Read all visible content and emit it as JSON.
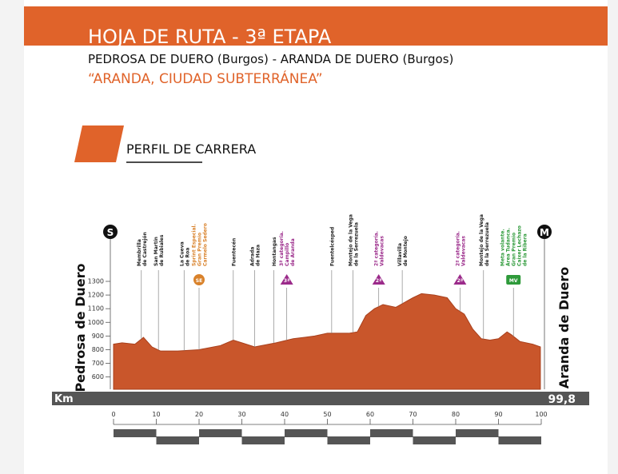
{
  "header": {
    "title": "HOJA DE RUTA - 3ª ETAPA",
    "subtitle": "PEDROSA DE DUERO (Burgos) - ARANDA DE DUERO (Burgos)",
    "tagline": "“ARANDA, CIUDAD SUBTERRÁNEA”"
  },
  "section": {
    "title": "PERFIL DE CARRERA"
  },
  "chart_data": {
    "type": "area",
    "color": "#c9562b",
    "x": [
      0,
      2,
      5,
      7,
      9,
      11,
      15,
      20,
      25,
      28,
      30,
      33,
      38,
      42,
      47,
      50,
      55,
      57,
      59,
      61,
      63,
      66,
      70,
      72,
      75,
      78,
      80,
      82,
      84,
      86,
      88,
      90,
      92,
      93,
      95,
      98,
      99.8
    ],
    "values": [
      840,
      850,
      840,
      890,
      820,
      790,
      790,
      800,
      830,
      870,
      850,
      820,
      850,
      880,
      900,
      920,
      920,
      930,
      1050,
      1100,
      1130,
      1110,
      1180,
      1210,
      1200,
      1180,
      1100,
      1060,
      950,
      880,
      870,
      880,
      930,
      910,
      860,
      840,
      820
    ],
    "xlim": [
      0,
      100
    ],
    "xticks": [
      0,
      10,
      20,
      30,
      40,
      50,
      60,
      70,
      80,
      90,
      100
    ],
    "ylim": [
      510,
      1300
    ],
    "yticks": [
      600,
      700,
      800,
      900,
      1000,
      1100,
      1200,
      1300
    ],
    "start": {
      "symbol": "S",
      "name": "Pedrosa de Duero"
    },
    "finish": {
      "symbol": "M",
      "name": "Aranda de Duero"
    },
    "km_bar": {
      "label": "Km",
      "total": "99,8"
    },
    "waypoints": [
      {
        "km": 6.5,
        "lines": [
          "Membrilla",
          "de Castrejón"
        ],
        "color": "#222222"
      },
      {
        "km": 10.5,
        "lines": [
          "San Martín",
          "de Rubiales"
        ],
        "color": "#222222"
      },
      {
        "km": 16.5,
        "lines": [
          "La Cueva",
          "de Roa"
        ],
        "color": "#222222"
      },
      {
        "km": 20,
        "lines": [
          "Sprint Especial.",
          "Gran Premio",
          "Carmelo Sedero"
        ],
        "color": "#d9822b",
        "badge": "SE",
        "shape": "circle"
      },
      {
        "km": 28,
        "lines": [
          "Fuentecén"
        ],
        "color": "#222222"
      },
      {
        "km": 33,
        "lines": [
          "Adrada",
          "de Haza"
        ],
        "color": "#222222"
      },
      {
        "km": 37.5,
        "lines": [
          "Hontangas"
        ],
        "color": "#222222"
      },
      {
        "km": 40.5,
        "lines": [
          "3ª categoría.",
          "Campillo",
          "de Aranda"
        ],
        "color": "#9b2a8a",
        "badge": "3ª",
        "shape": "triangle"
      },
      {
        "km": 51,
        "lines": [
          "Fuentelcésped"
        ],
        "color": "#222222"
      },
      {
        "km": 56,
        "lines": [
          "Montejo de la Vega",
          "de la Serrezuela"
        ],
        "color": "#222222"
      },
      {
        "km": 62,
        "lines": [
          "2ª categoría.",
          "Valdevacas"
        ],
        "color": "#9b2a8a",
        "badge": "2ª",
        "shape": "triangle"
      },
      {
        "km": 67.5,
        "lines": [
          "Villavilla",
          "de Montejo"
        ],
        "color": "#222222"
      },
      {
        "km": 81,
        "lines": [
          "2ª categoría.",
          "Valdevacas"
        ],
        "color": "#9b2a8a",
        "badge": "2ª",
        "shape": "triangle"
      },
      {
        "km": 86.5,
        "lines": [
          "Montejo de la Vega",
          "de la Serrezuela"
        ],
        "color": "#222222"
      },
      {
        "km": 93.5,
        "lines": [
          "Meta volante.",
          "Área Tudanca.",
          "Gran Premio",
          "Caixer Lechazo",
          "de la Ribera"
        ],
        "color": "#2e9a3a",
        "badge": "MV",
        "shape": "rect"
      }
    ]
  }
}
